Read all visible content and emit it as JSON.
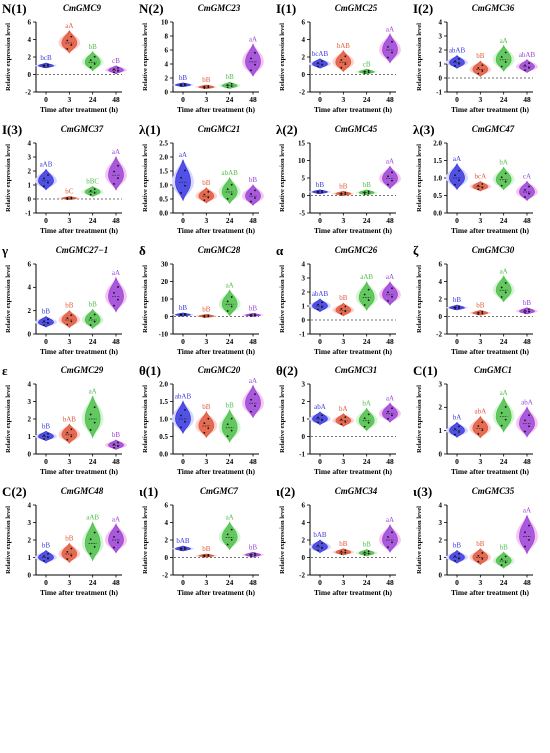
{
  "chart_data": [
    {
      "type": "violin",
      "panel": "N(1)",
      "gene": "CmGMC9",
      "ylim": [
        -2,
        6
      ],
      "yticks": [
        -2,
        0,
        2,
        4,
        6
      ],
      "refline": 0,
      "categories": [
        "0",
        "3",
        "24",
        "48"
      ],
      "xlabel": "Time after treatment (h)",
      "ylabel": "Relative expression level",
      "values": [
        1.0,
        3.6,
        1.4,
        0.5
      ],
      "spread": [
        0.3,
        1.4,
        1.2,
        0.5
      ],
      "letters": [
        "bcB",
        "aA",
        "bB",
        "cB"
      ]
    },
    {
      "type": "violin",
      "panel": "N(2)",
      "gene": "CmGMC23",
      "ylim": [
        0,
        10
      ],
      "yticks": [
        0,
        2,
        4,
        6,
        8,
        10
      ],
      "refline": null,
      "categories": [
        "0",
        "3",
        "24",
        "48"
      ],
      "xlabel": "Time after treatment (h)",
      "ylabel": "Relative expression level",
      "values": [
        1.0,
        0.7,
        0.9,
        4.3
      ],
      "spread": [
        0.3,
        0.3,
        0.5,
        2.5
      ],
      "letters": [
        "bB",
        "bB",
        "bB",
        "aA"
      ]
    },
    {
      "type": "violin",
      "panel": "I(1)",
      "gene": "CmGMC25",
      "ylim": [
        -2,
        6
      ],
      "yticks": [
        -2,
        0,
        2,
        4,
        6
      ],
      "refline": 0,
      "categories": [
        "0",
        "3",
        "24",
        "48"
      ],
      "xlabel": "Time after treatment (h)",
      "ylabel": "Relative expression level",
      "values": [
        1.2,
        1.4,
        0.3,
        2.8
      ],
      "spread": [
        0.6,
        1.3,
        0.3,
        1.8
      ],
      "letters": [
        "bcAB",
        "bAB",
        "cB",
        "aA"
      ]
    },
    {
      "type": "violin",
      "panel": "I(2)",
      "gene": "CmGMC36",
      "ylim": [
        -1,
        4
      ],
      "yticks": [
        -1,
        0,
        1,
        2,
        3,
        4
      ],
      "refline": 0,
      "categories": [
        "0",
        "3",
        "24",
        "48"
      ],
      "xlabel": "Time after treatment (h)",
      "ylabel": "Relative expression level",
      "values": [
        1.1,
        0.6,
        1.3,
        0.8
      ],
      "spread": [
        0.5,
        0.6,
        1.0,
        0.5
      ],
      "letters": [
        "abAB",
        "bB",
        "aA",
        "abAB"
      ]
    },
    {
      "type": "violin",
      "panel": "I(3)",
      "gene": "CmGMC37",
      "ylim": [
        -1,
        4
      ],
      "yticks": [
        -1,
        0,
        1,
        2,
        3,
        4
      ],
      "refline": 0,
      "categories": [
        "0",
        "3",
        "24",
        "48"
      ],
      "xlabel": "Time after treatment (h)",
      "ylabel": "Relative expression level",
      "values": [
        1.3,
        0.05,
        0.5,
        1.7
      ],
      "spread": [
        0.8,
        0.05,
        0.4,
        1.3
      ],
      "letters": [
        "aAB",
        "bC",
        "bBC",
        "aA"
      ]
    },
    {
      "type": "violin",
      "panel": "λ(1)",
      "gene": "CmGMC21",
      "ylim": [
        0.0,
        2.5
      ],
      "yticks": [
        0.0,
        0.5,
        1.0,
        1.5,
        2.0,
        2.5
      ],
      "refline": null,
      "categories": [
        "0",
        "3",
        "24",
        "48"
      ],
      "xlabel": "Time after treatment (h)",
      "ylabel": "Relative expression level",
      "values": [
        1.1,
        0.6,
        0.75,
        0.6
      ],
      "spread": [
        0.8,
        0.3,
        0.5,
        0.4
      ],
      "letters": [
        "aA",
        "bB",
        "abAB",
        "bB"
      ]
    },
    {
      "type": "violin",
      "panel": "λ(2)",
      "gene": "CmGMC45",
      "ylim": [
        -5,
        15
      ],
      "yticks": [
        -5,
        0,
        5,
        10,
        15
      ],
      "refline": 0,
      "categories": [
        "0",
        "3",
        "24",
        "48"
      ],
      "xlabel": "Time after treatment (h)",
      "ylabel": "Relative expression level",
      "values": [
        1.0,
        0.5,
        0.8,
        4.8
      ],
      "spread": [
        0.6,
        0.7,
        0.8,
        3.5
      ],
      "letters": [
        "bB",
        "bB",
        "bB",
        "aA"
      ]
    },
    {
      "type": "violin",
      "panel": "λ(3)",
      "gene": "CmGMC47",
      "ylim": [
        0.0,
        2.0
      ],
      "yticks": [
        0.0,
        0.5,
        1.0,
        1.5,
        2.0
      ],
      "refline": null,
      "categories": [
        "0",
        "3",
        "24",
        "48"
      ],
      "xlabel": "Time after treatment (h)",
      "ylabel": "Relative expression level",
      "values": [
        1.0,
        0.75,
        0.95,
        0.6
      ],
      "spread": [
        0.4,
        0.15,
        0.35,
        0.3
      ],
      "letters": [
        "aA",
        "bcA",
        "bA",
        "cA"
      ]
    },
    {
      "type": "violin",
      "panel": "γ",
      "gene": "CmGMC27−1",
      "ylim": [
        0,
        6
      ],
      "yticks": [
        0,
        2,
        4,
        6
      ],
      "refline": null,
      "categories": [
        "0",
        "3",
        "24",
        "48"
      ],
      "xlabel": "Time after treatment (h)",
      "ylabel": "Relative expression level",
      "values": [
        1.0,
        1.2,
        1.2,
        3.2
      ],
      "spread": [
        0.5,
        0.8,
        0.9,
        1.6
      ],
      "letters": [
        "bB",
        "bB",
        "bB",
        "aA"
      ]
    },
    {
      "type": "violin",
      "panel": "δ",
      "gene": "CmGMC28",
      "ylim": [
        -10,
        30
      ],
      "yticks": [
        -10,
        0,
        10,
        20,
        30
      ],
      "refline": 0,
      "categories": [
        "0",
        "3",
        "24",
        "48"
      ],
      "xlabel": "Time after treatment (h)",
      "ylabel": "Relative expression level",
      "values": [
        1.0,
        0.2,
        7.0,
        0.8
      ],
      "spread": [
        0.8,
        0.3,
        8.0,
        0.6
      ],
      "letters": [
        "bB",
        "bB",
        "aA",
        "bB"
      ]
    },
    {
      "type": "violin",
      "panel": "α",
      "gene": "CmGMC26",
      "ylim": [
        -1,
        4
      ],
      "yticks": [
        -1,
        0,
        1,
        2,
        3,
        4
      ],
      "refline": 0,
      "categories": [
        "0",
        "3",
        "24",
        "48"
      ],
      "xlabel": "Time after treatment (h)",
      "ylabel": "Relative expression level",
      "values": [
        1.0,
        0.7,
        1.6,
        1.8
      ],
      "spread": [
        0.5,
        0.5,
        1.1,
        0.9
      ],
      "letters": [
        "abAB",
        "bB",
        "aAB",
        "aA"
      ]
    },
    {
      "type": "violin",
      "panel": "ζ",
      "gene": "CmGMC30",
      "ylim": [
        -2,
        6
      ],
      "yticks": [
        -2,
        0,
        2,
        4,
        6
      ],
      "refline": 0,
      "categories": [
        "0",
        "3",
        "24",
        "48"
      ],
      "xlabel": "Time after treatment (h)",
      "ylabel": "Relative expression level",
      "values": [
        1.0,
        0.4,
        3.0,
        0.6
      ],
      "spread": [
        0.3,
        0.3,
        1.6,
        0.4
      ],
      "letters": [
        "bB",
        "bB",
        "aA",
        "bB"
      ]
    },
    {
      "type": "violin",
      "panel": "ε",
      "gene": "CmGMC29",
      "ylim": [
        0,
        4
      ],
      "yticks": [
        0,
        1,
        2,
        3,
        4
      ],
      "refline": null,
      "categories": [
        "0",
        "3",
        "24",
        "48"
      ],
      "xlabel": "Time after treatment (h)",
      "ylabel": "Relative expression level",
      "values": [
        1.0,
        1.1,
        2.0,
        0.5
      ],
      "spread": [
        0.3,
        0.6,
        1.3,
        0.3
      ],
      "letters": [
        "bB",
        "bAB",
        "aA",
        "bB"
      ]
    },
    {
      "type": "violin",
      "panel": "θ(1)",
      "gene": "CmGMC20",
      "ylim": [
        0.0,
        2.0
      ],
      "yticks": [
        0.0,
        0.5,
        1.0,
        1.5,
        2.0
      ],
      "refline": null,
      "categories": [
        "0",
        "3",
        "24",
        "48"
      ],
      "xlabel": "Time after treatment (h)",
      "ylabel": "Relative expression level",
      "values": [
        1.0,
        0.8,
        0.75,
        1.45
      ],
      "spread": [
        0.5,
        0.4,
        0.5,
        0.5
      ],
      "letters": [
        "abAB",
        "bB",
        "bB",
        "aA"
      ]
    },
    {
      "type": "violin",
      "panel": "θ(2)",
      "gene": "CmGMC31",
      "ylim": [
        -1,
        3
      ],
      "yticks": [
        -1,
        0,
        1,
        2,
        3
      ],
      "refline": 0,
      "categories": [
        "0",
        "3",
        "24",
        "48"
      ],
      "xlabel": "Time after treatment (h)",
      "ylabel": "Relative expression level",
      "values": [
        1.0,
        0.9,
        0.9,
        1.3
      ],
      "spread": [
        0.4,
        0.4,
        0.7,
        0.6
      ],
      "letters": [
        "abA",
        "bA",
        "bA",
        "aA"
      ]
    },
    {
      "type": "violin",
      "panel": "C(1)",
      "gene": "CmGMC1",
      "ylim": [
        0,
        3
      ],
      "yticks": [
        0,
        1,
        2,
        3
      ],
      "refline": null,
      "categories": [
        "0",
        "3",
        "24",
        "48"
      ],
      "xlabel": "Time after treatment (h)",
      "ylabel": "Relative expression level",
      "values": [
        1.0,
        1.1,
        1.6,
        1.3
      ],
      "spread": [
        0.35,
        0.5,
        0.8,
        0.7
      ],
      "letters": [
        "bA",
        "abA",
        "aA",
        "abA"
      ]
    },
    {
      "type": "violin",
      "panel": "C(2)",
      "gene": "CmGMC48",
      "ylim": [
        0,
        4
      ],
      "yticks": [
        0,
        1,
        2,
        3,
        4
      ],
      "refline": null,
      "categories": [
        "0",
        "3",
        "24",
        "48"
      ],
      "xlabel": "Time after treatment (h)",
      "ylabel": "Relative expression level",
      "values": [
        1.0,
        1.2,
        1.8,
        2.0
      ],
      "spread": [
        0.4,
        0.6,
        1.2,
        0.9
      ],
      "letters": [
        "bB",
        "bB",
        "aAB",
        "aA"
      ]
    },
    {
      "type": "violin",
      "panel": "ι(1)",
      "gene": "CmGMC7",
      "ylim": [
        -2,
        6
      ],
      "yticks": [
        -2,
        0,
        2,
        4,
        6
      ],
      "refline": 0,
      "categories": [
        "0",
        "3",
        "24",
        "48"
      ],
      "xlabel": "Time after treatment (h)",
      "ylabel": "Relative expression level",
      "values": [
        1.0,
        0.2,
        2.3,
        0.3
      ],
      "spread": [
        0.3,
        0.2,
        1.7,
        0.3
      ],
      "letters": [
        "bAB",
        "bB",
        "aA",
        "bB"
      ]
    },
    {
      "type": "violin",
      "panel": "ι(2)",
      "gene": "CmGMC34",
      "ylim": [
        -2,
        6
      ],
      "yticks": [
        -2,
        0,
        2,
        4,
        6
      ],
      "refline": 0,
      "categories": [
        "0",
        "3",
        "24",
        "48"
      ],
      "xlabel": "Time after treatment (h)",
      "ylabel": "Relative expression level",
      "values": [
        1.2,
        0.6,
        0.5,
        2.0
      ],
      "spread": [
        0.8,
        0.4,
        0.4,
        1.7
      ],
      "letters": [
        "bAB",
        "bB",
        "bB",
        "aA"
      ]
    },
    {
      "type": "violin",
      "panel": "ι(3)",
      "gene": "CmGMC35",
      "ylim": [
        0,
        4
      ],
      "yticks": [
        0,
        1,
        2,
        3,
        4
      ],
      "refline": null,
      "categories": [
        "0",
        "3",
        "24",
        "48"
      ],
      "xlabel": "Time after treatment (h)",
      "ylabel": "Relative expression level",
      "values": [
        1.0,
        1.0,
        0.8,
        2.2
      ],
      "spread": [
        0.4,
        0.5,
        0.5,
        1.2
      ],
      "letters": [
        "bB",
        "bB",
        "bB",
        "aA"
      ]
    }
  ],
  "colors": {
    "series": [
      "#3a3ae0",
      "#e05a3c",
      "#4fbf4a",
      "#9b45d8"
    ],
    "halo": [
      "#d6d6ff",
      "#ffd2d2",
      "#d6f5d6",
      "#f7c6f0"
    ],
    "dash": "#444444"
  }
}
